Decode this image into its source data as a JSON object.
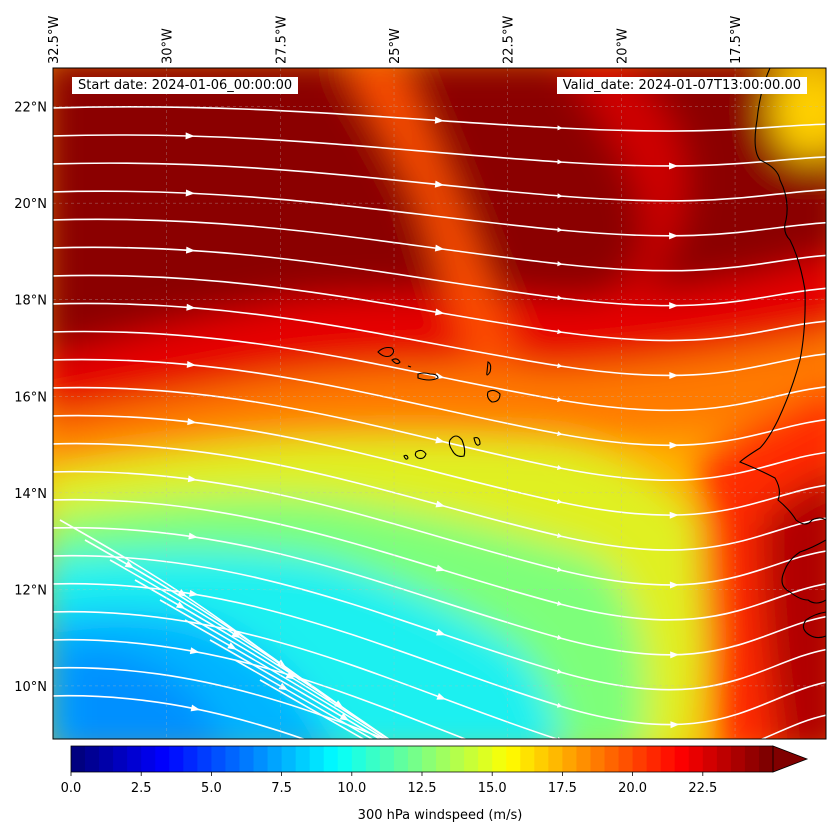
{
  "info": {
    "start_date": "Start date: 2024-01-06_00:00:00",
    "valid_date": "Valid_date: 2024-01-07T13:00:00.00"
  },
  "map": {
    "lon_range": [
      -32.5,
      -15.5
    ],
    "lat_range": [
      8.9,
      22.8
    ],
    "lon_ticks": [
      {
        "value": -32.5,
        "label": "32.5°W"
      },
      {
        "value": -30.0,
        "label": "30°W"
      },
      {
        "value": -27.5,
        "label": "27.5°W"
      },
      {
        "value": -25.0,
        "label": "25°W"
      },
      {
        "value": -22.5,
        "label": "22.5°W"
      },
      {
        "value": -20.0,
        "label": "20°W"
      },
      {
        "value": -17.5,
        "label": "17.5°W"
      }
    ],
    "lat_ticks": [
      {
        "value": 10,
        "label": "10°N"
      },
      {
        "value": 12,
        "label": "12°N"
      },
      {
        "value": 14,
        "label": "14°N"
      },
      {
        "value": 16,
        "label": "16°N"
      },
      {
        "value": 18,
        "label": "18°N"
      },
      {
        "value": 20,
        "label": "20°N"
      },
      {
        "value": 22,
        "label": "22°N"
      }
    ],
    "field": "300 hPa windspeed",
    "streamlines": "white wind streamlines with arrowheads",
    "coastline": "Cape Verde islands and West African coast"
  },
  "colorbar": {
    "label": "300 hPa windspeed (m/s)",
    "min": 0.0,
    "max": 25.0,
    "extend": "max",
    "colormap": "jet",
    "ticks": [
      {
        "value": 0.0,
        "label": "0.0"
      },
      {
        "value": 2.5,
        "label": "2.5"
      },
      {
        "value": 5.0,
        "label": "5.0"
      },
      {
        "value": 7.5,
        "label": "7.5"
      },
      {
        "value": 10.0,
        "label": "10.0"
      },
      {
        "value": 12.5,
        "label": "12.5"
      },
      {
        "value": 15.0,
        "label": "15.0"
      },
      {
        "value": 17.5,
        "label": "17.5"
      },
      {
        "value": 20.0,
        "label": "20.0"
      },
      {
        "value": 22.5,
        "label": "22.5"
      }
    ]
  }
}
